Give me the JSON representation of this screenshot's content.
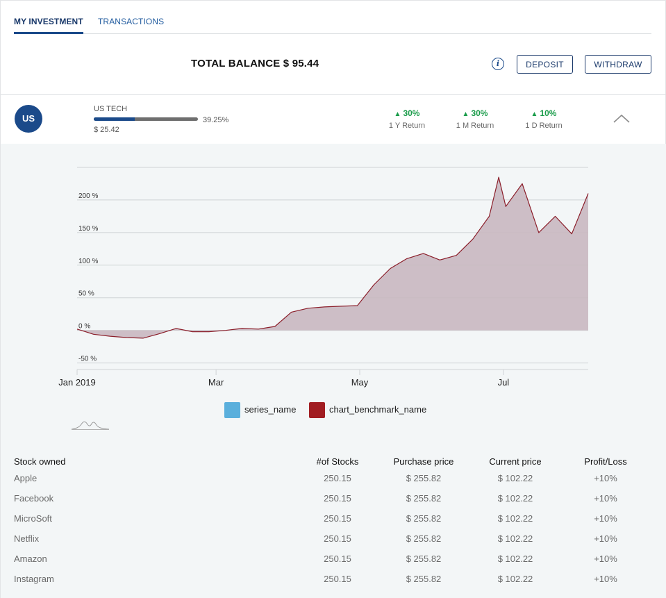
{
  "tabs": [
    {
      "label": "MY INVESTMENT",
      "active": true
    },
    {
      "label": "TRANSACTIONS",
      "active": false
    }
  ],
  "balance": {
    "label": "TOTAL BALANCE $ 95.44"
  },
  "actions": {
    "info_icon": "info-icon",
    "deposit": "DEPOSIT",
    "withdraw": "WITHDRAW"
  },
  "fund": {
    "initials": "US",
    "name": "US TECH",
    "progress_percent": 39.25,
    "progress_label": "39.25%",
    "value": "$ 25.42",
    "accent": "#1b4a8a",
    "returns": [
      {
        "value": "30%",
        "label": "1 Y Return"
      },
      {
        "value": "30%",
        "label": "1 M Return"
      },
      {
        "value": "10%",
        "label": "1 D Return"
      }
    ],
    "collapse_icon": "chevron-up-icon"
  },
  "chart_data": {
    "type": "area",
    "ylim": [
      -60,
      250
    ],
    "y_ticks": [
      -50,
      0,
      50,
      100,
      150,
      200
    ],
    "y_tick_labels": [
      "-50 %",
      "0 %",
      "50 %",
      "100 %",
      "150 %",
      "200 %"
    ],
    "x_ticks": [
      "2019-01-01",
      "2019-03-01",
      "2019-05-01",
      "2019-07-01"
    ],
    "x_tick_labels": [
      "Jan 2019",
      "Mar",
      "May",
      "Jul"
    ],
    "grid": true,
    "legend_position": "bottom",
    "legend": [
      {
        "name": "series_name",
        "color": "#5aafdc"
      },
      {
        "name": "chart_benchmark_name",
        "color": "#a11d22"
      }
    ],
    "series": [
      {
        "name": "chart_benchmark_name",
        "color": "#8b1e2a",
        "fill": "#c9b8c0",
        "x": [
          "2019-01-01",
          "2019-01-08",
          "2019-01-15",
          "2019-01-22",
          "2019-01-29",
          "2019-02-05",
          "2019-02-12",
          "2019-02-19",
          "2019-02-26",
          "2019-03-05",
          "2019-03-12",
          "2019-03-19",
          "2019-03-26",
          "2019-04-02",
          "2019-04-09",
          "2019-04-16",
          "2019-04-23",
          "2019-04-30",
          "2019-05-07",
          "2019-05-14",
          "2019-05-21",
          "2019-05-28",
          "2019-06-04",
          "2019-06-11",
          "2019-06-18",
          "2019-06-25",
          "2019-06-29",
          "2019-07-02",
          "2019-07-09",
          "2019-07-16",
          "2019-07-23",
          "2019-07-30",
          "2019-08-06"
        ],
        "values": [
          2,
          -6,
          -9,
          -11,
          -12,
          -5,
          3,
          -2,
          -2,
          0,
          3,
          2,
          6,
          28,
          34,
          36,
          37,
          38,
          70,
          95,
          110,
          118,
          108,
          115,
          140,
          175,
          235,
          190,
          225,
          150,
          175,
          148,
          210
        ]
      }
    ]
  },
  "table": {
    "headers": [
      "Stock owned",
      "#of Stocks",
      "Purchase price",
      "Current price",
      "Profit/Loss"
    ],
    "rows": [
      [
        "Apple",
        "250.15",
        "$ 255.82",
        "$ 102.22",
        "+10%"
      ],
      [
        "Facebook",
        "250.15",
        "$ 255.82",
        "$ 102.22",
        "+10%"
      ],
      [
        "MicroSoft",
        "250.15",
        "$ 255.82",
        "$ 102.22",
        "+10%"
      ],
      [
        "Netflix",
        "250.15",
        "$ 255.82",
        "$ 102.22",
        "+10%"
      ],
      [
        "Amazon",
        "250.15",
        "$ 255.82",
        "$ 102.22",
        "+10%"
      ],
      [
        "Instagram",
        "250.15",
        "$ 255.82",
        "$ 102.22",
        "+10%"
      ]
    ]
  }
}
